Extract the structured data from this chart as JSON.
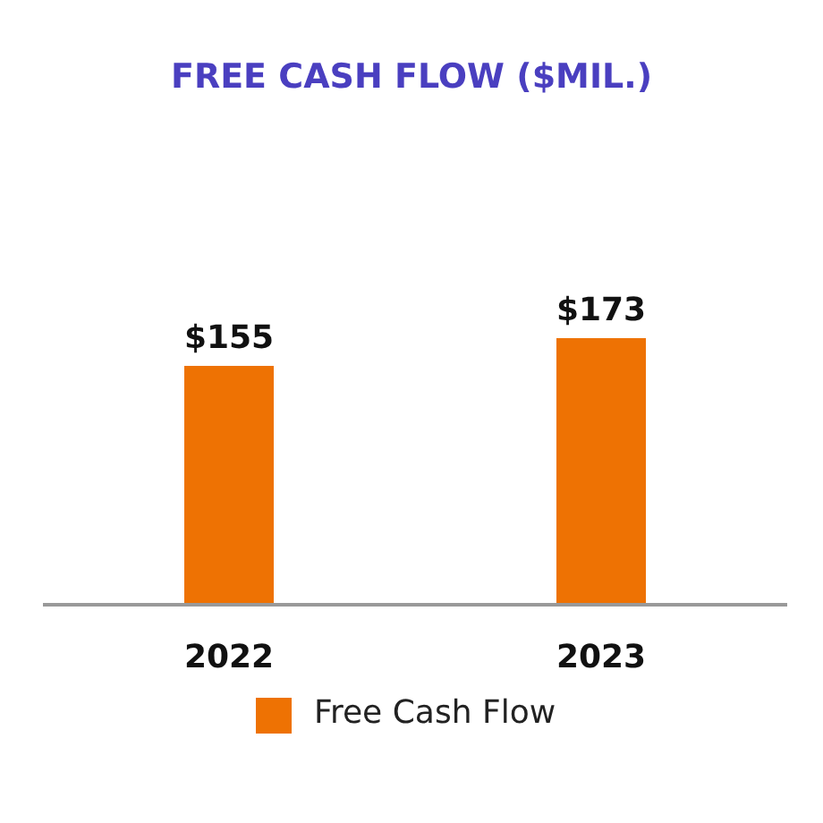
{
  "chart_data": {
    "type": "bar",
    "title": "FREE CASH FLOW ($MIL.)",
    "categories": [
      "2022",
      "2023"
    ],
    "series": [
      {
        "name": "Free Cash Flow",
        "color": "#ee7203",
        "values": [
          155,
          173
        ],
        "value_labels": [
          "$155",
          "$173"
        ]
      }
    ],
    "legend": "bottom",
    "grid": false
  }
}
